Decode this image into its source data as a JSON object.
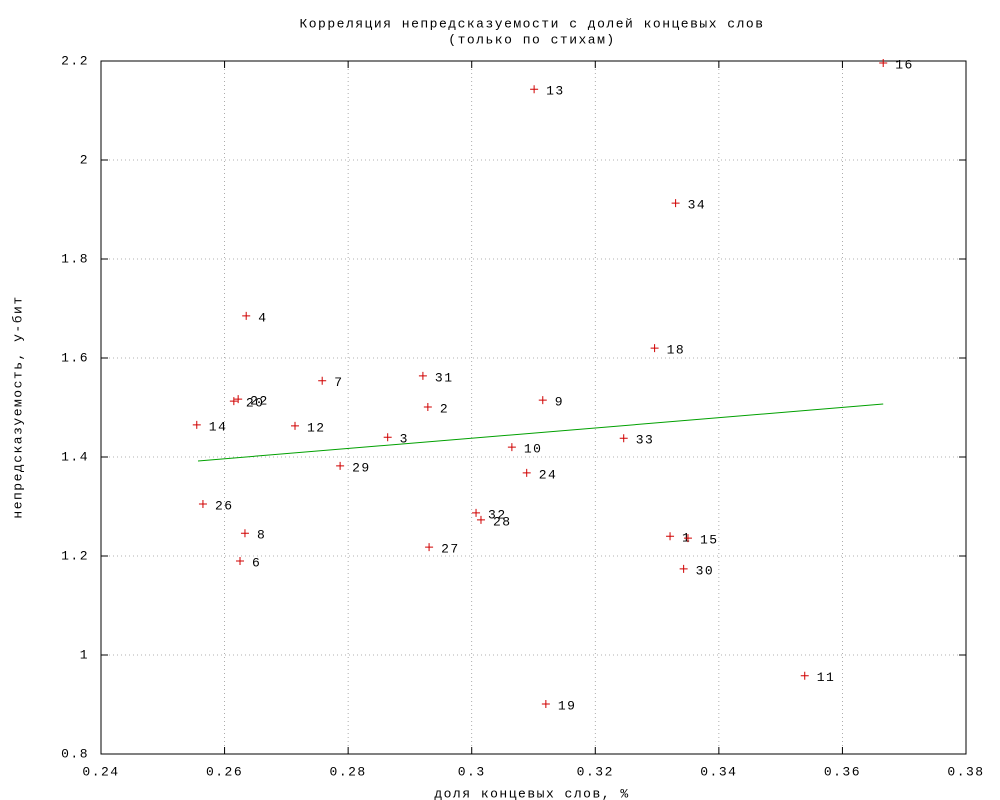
{
  "chart_data": {
    "type": "scatter",
    "title": "Корреляция непредсказуемости с долей концевых слов",
    "subtitle": "(только по стихам)",
    "x_label": "доля концевых слов, %",
    "y_label": "непредсказуемость, у-бит",
    "point_labels": [
      "16",
      "13",
      "34",
      "4",
      "18",
      "31",
      "7",
      "9",
      "2",
      "20",
      "22",
      "12",
      "14",
      "3",
      "10",
      "33",
      "29",
      "24",
      "26",
      "32",
      "28",
      "8",
      "1",
      "15",
      "27",
      "6",
      "30",
      "11",
      "19"
    ],
    "x": [
      0.3666,
      0.3101,
      0.333,
      0.2635,
      0.3296,
      0.2921,
      0.2758,
      0.3115,
      0.2929,
      0.2615,
      0.2622,
      0.2714,
      0.2555,
      0.2864,
      0.3065,
      0.3246,
      0.2787,
      0.3089,
      0.2565,
      0.3007,
      0.3015,
      0.2633,
      0.3321,
      0.335,
      0.2931,
      0.2625,
      0.3343,
      0.3539,
      0.312
    ],
    "y": [
      2.196,
      2.143,
      1.913,
      1.685,
      1.62,
      1.564,
      1.554,
      1.515,
      1.501,
      1.513,
      1.517,
      1.463,
      1.465,
      1.44,
      1.42,
      1.438,
      1.382,
      1.368,
      1.305,
      1.287,
      1.273,
      1.246,
      1.24,
      1.236,
      1.218,
      1.19,
      1.174,
      0.958,
      0.901
    ],
    "color": "#d00000",
    "fit": {
      "x": [
        0.2557,
        0.3666
      ],
      "y": [
        1.392,
        1.507
      ],
      "color": "#00a000"
    },
    "xlim": [
      0.24,
      0.38
    ],
    "xticks": [
      0.24,
      0.26,
      0.28,
      0.3,
      0.32,
      0.34,
      0.36,
      0.38
    ],
    "ylim": [
      0.8,
      2.2
    ],
    "yticks": [
      0.8,
      1,
      1.2,
      1.4,
      1.6,
      1.8,
      2,
      2.2
    ],
    "grid": true
  }
}
